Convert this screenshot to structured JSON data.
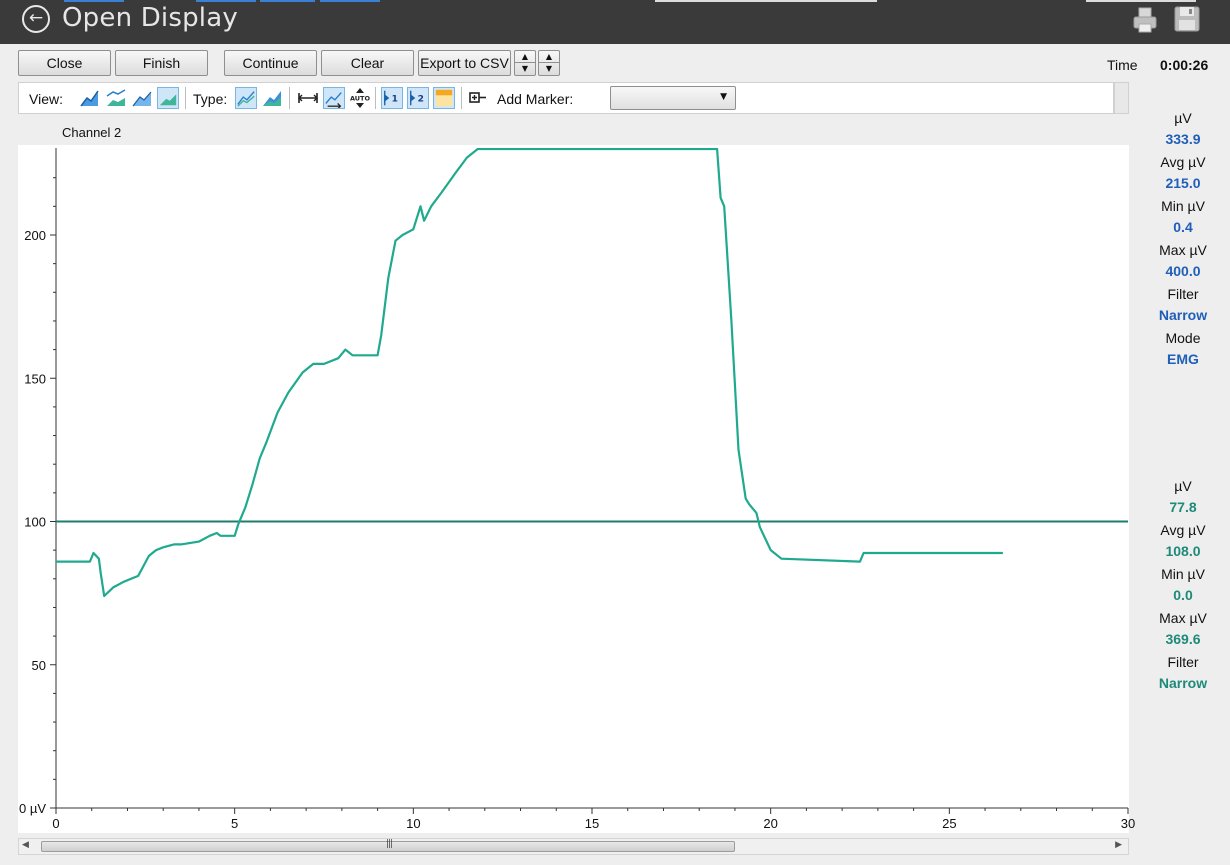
{
  "window": {
    "title": "Open Display"
  },
  "toolbar": {
    "close_label": "Close",
    "finish_label": "Finish",
    "continue_label": "Continue",
    "clear_label": "Clear",
    "export_label": "Export to CSV",
    "time_label": "Time",
    "time_value": "0:00:26"
  },
  "viewbar": {
    "view_label": "View:",
    "type_label": "Type:",
    "add_marker_label": "Add Marker:",
    "marker_selected": ""
  },
  "channel_label": "Channel 2",
  "readout_top": [
    {
      "label": "µV",
      "value": "333.9"
    },
    {
      "label": "Avg µV",
      "value": "215.0"
    },
    {
      "label": "Min µV",
      "value": "0.4"
    },
    {
      "label": "Max µV",
      "value": "400.0"
    },
    {
      "label": "Filter",
      "value": "Narrow"
    },
    {
      "label": "Mode",
      "value": "EMG"
    }
  ],
  "readout_bottom": [
    {
      "label": "µV",
      "value": "77.8"
    },
    {
      "label": "Avg µV",
      "value": "108.0"
    },
    {
      "label": "Min µV",
      "value": "0.0"
    },
    {
      "label": "Max µV",
      "value": "369.6"
    },
    {
      "label": "Filter",
      "value": "Narrow"
    }
  ],
  "colors": {
    "trace": "#1fa98e",
    "threshold": "#1e7d6b",
    "accent_top": "#1f5fb8",
    "accent_bottom": "#1e8a7a"
  },
  "chart_data": {
    "type": "line",
    "xlim": [
      0,
      30
    ],
    "ylim": [
      0,
      230
    ],
    "x_ticks": [
      "0",
      "5",
      "10",
      "15",
      "20",
      "25",
      "30"
    ],
    "y_ticks": [
      {
        "value": 0,
        "label": "0 µV"
      },
      {
        "value": 50,
        "label": "50"
      },
      {
        "value": 100,
        "label": "100"
      },
      {
        "value": 150,
        "label": "150"
      },
      {
        "value": 200,
        "label": "200"
      }
    ],
    "threshold": 100,
    "series": [
      {
        "x": [
          0,
          0.95,
          1.05,
          1.2,
          1.25,
          1.35,
          1.6,
          1.9,
          2.3,
          2.6,
          2.8,
          3.0,
          3.3,
          3.5,
          4.0,
          4.3,
          4.5,
          4.6,
          4.7,
          5.0,
          5.1,
          5.3,
          5.5,
          5.7,
          5.9,
          6.2,
          6.5,
          6.9,
          7.2,
          7.5,
          7.9,
          8.1,
          8.3,
          9.0,
          9.1,
          9.3,
          9.5,
          9.7,
          10.0,
          10.2,
          10.3,
          10.5,
          10.8,
          11.2,
          11.5,
          11.8,
          18.5,
          18.6,
          18.7,
          18.9,
          19.1,
          19.3,
          19.4,
          19.6,
          19.7,
          20.0,
          20.3,
          22.5,
          22.6,
          26.5
        ],
        "y": [
          86,
          86,
          89,
          87,
          82,
          74,
          77,
          79,
          81,
          88,
          90,
          91,
          92,
          92,
          93,
          95,
          96,
          95,
          95,
          95,
          99,
          105,
          113,
          122,
          128,
          138,
          145,
          152,
          155,
          155,
          157,
          160,
          158,
          158,
          165,
          185,
          198,
          200,
          202,
          210,
          205,
          210,
          215,
          222,
          227,
          230,
          230,
          213,
          210,
          170,
          125,
          108,
          106,
          103,
          98,
          90,
          87,
          86,
          89,
          89
        ]
      }
    ]
  }
}
